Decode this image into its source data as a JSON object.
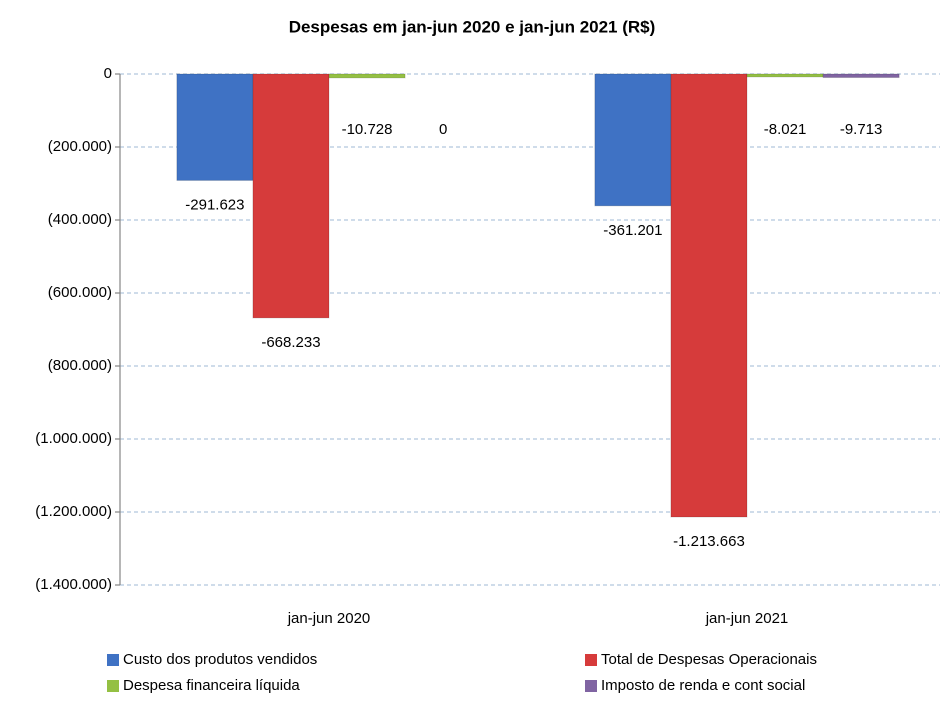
{
  "chart_data": {
    "type": "bar",
    "title": "Despesas em jan-jun 2020 e jan-jun 2021 (R$)",
    "categories": [
      "jan-jun 2020",
      "jan-jun 2021"
    ],
    "series": [
      {
        "name": "Custo dos produtos vendidos",
        "color": "#3f72c4",
        "values": [
          -291623,
          -361201
        ],
        "value_labels": [
          "-291.623",
          "-361.201"
        ]
      },
      {
        "name": "Total de Despesas Operacionais",
        "color": "#d63b3b",
        "values": [
          -668233,
          -1213663
        ],
        "value_labels": [
          "-668.233",
          "-1.213.663"
        ]
      },
      {
        "name": "Despesa financeira líquida",
        "color": "#94c043",
        "values": [
          -10728,
          -8021
        ],
        "value_labels": [
          "-10.728",
          "-8.021"
        ]
      },
      {
        "name": "Imposto de renda e cont social",
        "color": "#8064a2",
        "values": [
          0,
          -9713
        ],
        "value_labels": [
          "0",
          "-9.713"
        ]
      }
    ],
    "ylim": [
      -1400000,
      0
    ],
    "yticks": [
      0,
      {
        "value": -200000,
        "label": "(200.000)"
      },
      {
        "value": -400000,
        "label": "(400.000)"
      },
      {
        "value": -600000,
        "label": "(600.000)"
      },
      {
        "value": -800000,
        "label": "(800.000)"
      },
      {
        "value": -1000000,
        "label": "(1.000.000)"
      },
      {
        "value": -1200000,
        "label": "(1.200.000)"
      },
      {
        "value": -1400000,
        "label": "(1.400.000)"
      }
    ],
    "grid": true
  }
}
